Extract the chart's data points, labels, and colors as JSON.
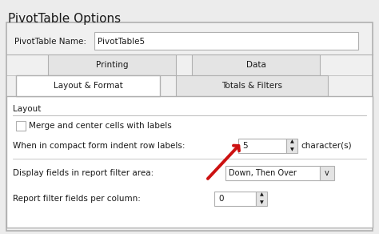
{
  "title": "PivotTable Options",
  "bg_color": "#ececec",
  "dialog_bg": "#f0f0f0",
  "white": "#ffffff",
  "tab_inactive_bg": "#e4e4e4",
  "border_color": "#b0b0b0",
  "border_dark": "#888888",
  "text_color": "#1a1a1a",
  "pivot_name_label": "PivotTable Name:",
  "pivot_name_value": "PivotTable5",
  "tab1_left": "Printing",
  "tab1_right": "Data",
  "tab2_active": "Layout & Format",
  "tab2_right": "Totals & Filters",
  "section_label": "Layout",
  "checkbox_label": "Merge and center cells with labels",
  "indent_label": "When in compact form indent row labels:",
  "indent_value": "5",
  "indent_suffix": "character(s)",
  "display_label": "Display fields in report filter area:",
  "display_value": "Down, Then Over",
  "filter_label": "Report filter fields per column:",
  "filter_value": "0",
  "arrow_color": "#cc1111"
}
